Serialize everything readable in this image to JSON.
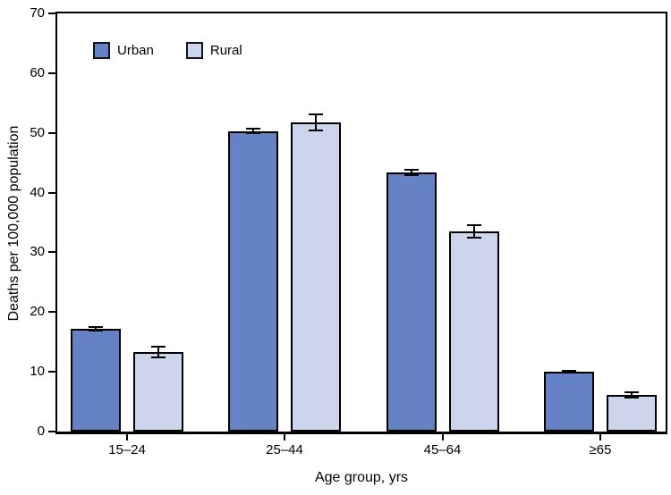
{
  "chart_data": {
    "type": "bar",
    "categories": [
      "15–24",
      "25–44",
      "45–64",
      "≥65"
    ],
    "series": [
      {
        "name": "Urban",
        "color": "#6583c4",
        "values": [
          17.2,
          50.3,
          43.4,
          10.0
        ],
        "errors": [
          0.5,
          0.5,
          0.6,
          0.3
        ]
      },
      {
        "name": "Rural",
        "color": "#ccd5ec",
        "values": [
          13.3,
          51.7,
          33.5,
          6.2
        ],
        "errors": [
          1.0,
          1.5,
          1.2,
          0.6
        ]
      }
    ],
    "title": "",
    "xlabel": "Age group, yrs",
    "ylabel": "Deaths per 100,000 population",
    "ylim": [
      0,
      70
    ],
    "ytick_step": 10,
    "yticks": [
      "0",
      "10",
      "20",
      "30",
      "40",
      "50",
      "60",
      "70"
    ],
    "grid": false,
    "error_bars": true,
    "frame": true,
    "legend_position": "top-left-inside",
    "outline_color": "#000000",
    "swatch_border_color": "#14141f"
  }
}
